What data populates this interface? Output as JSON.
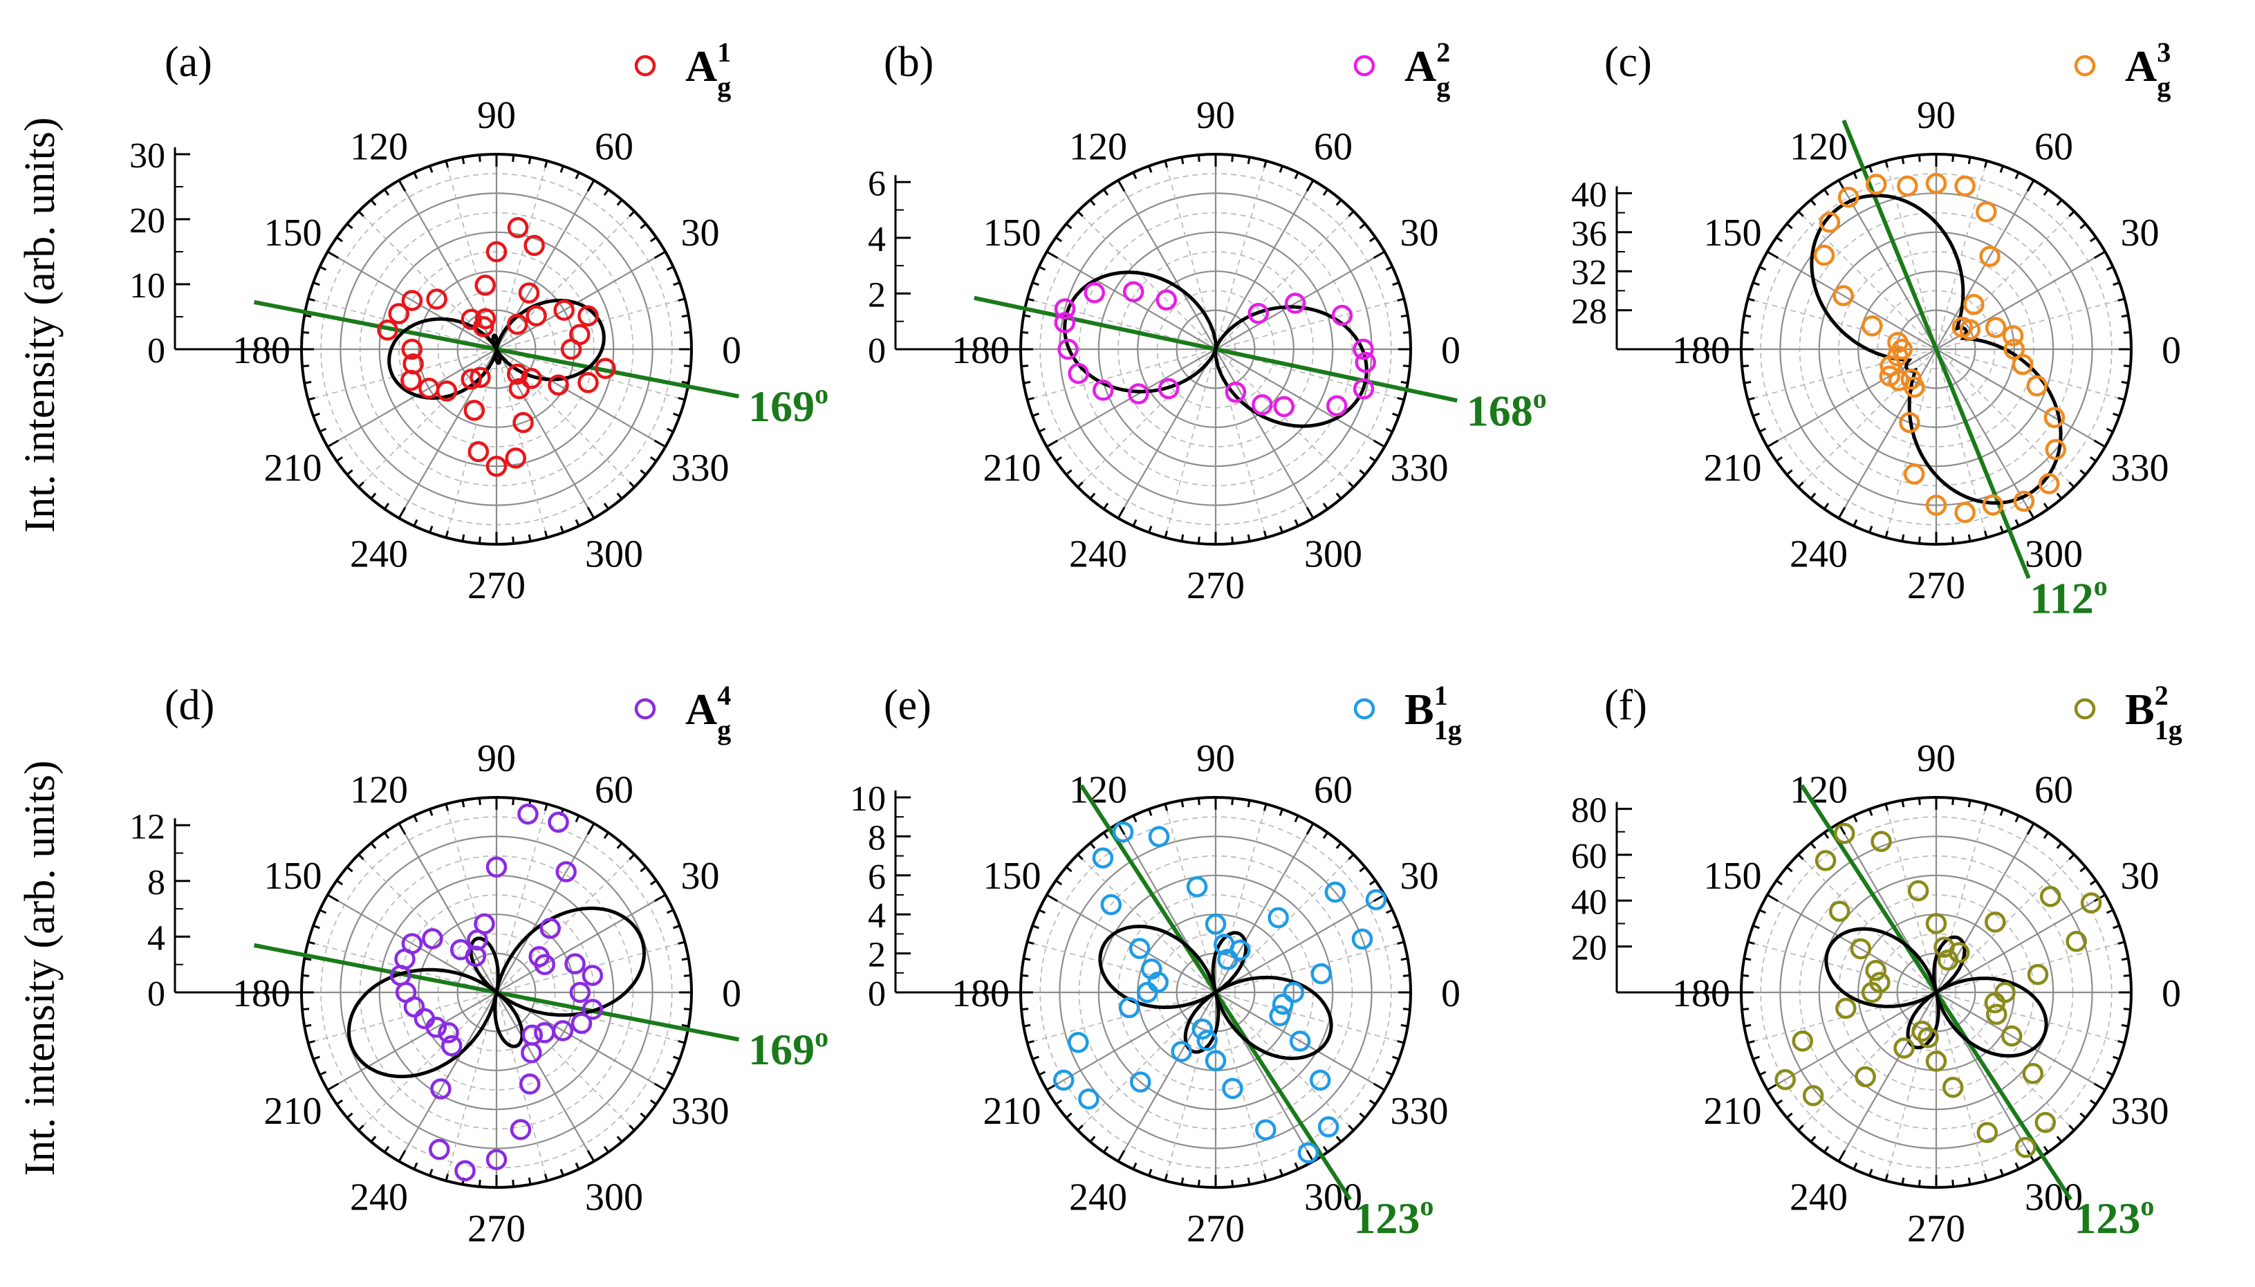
{
  "figure": {
    "ylabel_top": "Int. intensity (arb. units)",
    "ylabel_bottom": "Int. intensity (arb. units)"
  },
  "chart_data": [
    {
      "type": "polar-scatter-line",
      "panel_label": "(a)",
      "legend": {
        "symbol": "A",
        "sub": "g",
        "sup": "1"
      },
      "color": "#e8161b",
      "angle_ticks": [
        "0",
        "30",
        "60",
        "90",
        "120",
        "150",
        "180",
        "210",
        "240",
        "270",
        "300",
        "330"
      ],
      "r_axis": {
        "ticks": [
          0,
          10,
          20,
          30
        ],
        "rmin": 0,
        "rmax": 30
      },
      "axis_line": {
        "angle_deg": 169,
        "label": "169",
        "sup": "o",
        "color": "#1a7a1a"
      },
      "fit_params": {
        "a": 0,
        "b": 14.5,
        "c": 12.0,
        "theta0": 169
      },
      "points": [
        [
          0,
          11.5
        ],
        [
          10,
          13
        ],
        [
          20,
          15
        ],
        [
          30,
          12
        ],
        [
          40,
          8
        ],
        [
          50,
          5
        ],
        [
          60,
          10
        ],
        [
          70,
          17
        ],
        [
          80,
          19
        ],
        [
          90,
          15
        ],
        [
          100,
          10
        ],
        [
          110,
          5
        ],
        [
          120,
          4
        ],
        [
          130,
          6
        ],
        [
          140,
          12
        ],
        [
          150,
          15
        ],
        [
          160,
          16
        ],
        [
          170,
          17
        ],
        [
          180,
          13
        ],
        [
          190,
          13
        ],
        [
          200,
          14
        ],
        [
          210,
          12
        ],
        [
          220,
          10
        ],
        [
          230,
          6
        ],
        [
          240,
          5
        ],
        [
          250,
          10
        ],
        [
          260,
          16
        ],
        [
          270,
          18
        ],
        [
          280,
          17
        ],
        [
          290,
          12
        ],
        [
          300,
          7
        ],
        [
          310,
          5
        ],
        [
          320,
          7
        ],
        [
          330,
          11
        ],
        [
          340,
          15
        ],
        [
          350,
          17
        ]
      ]
    },
    {
      "type": "polar-scatter-line",
      "panel_label": "(b)",
      "legend": {
        "symbol": "A",
        "sub": "g",
        "sup": "2"
      },
      "color": "#e61ee6",
      "angle_ticks": [
        "0",
        "30",
        "60",
        "90",
        "120",
        "150",
        "180",
        "210",
        "240",
        "270",
        "300",
        "330"
      ],
      "r_axis": {
        "ticks": [
          0,
          2,
          4,
          6
        ],
        "rmin": 0,
        "rmax": 7
      },
      "axis_line": {
        "angle_deg": 168,
        "label": "168",
        "sup": "o",
        "color": "#1a7a1a"
      },
      "fit_params": {
        "a": 0,
        "b": 5.5,
        "c": 0,
        "theta0": 168
      },
      "points": [
        [
          0,
          5.3
        ],
        [
          15,
          4.7
        ],
        [
          30,
          3.3
        ],
        [
          40,
          2.0
        ],
        [
          155,
          4.8
        ],
        [
          165,
          5.6
        ],
        [
          170,
          5.5
        ],
        [
          180,
          5.3
        ],
        [
          190,
          5.0
        ],
        [
          200,
          4.3
        ],
        [
          210,
          3.2
        ],
        [
          220,
          2.2
        ],
        [
          335,
          4.8
        ],
        [
          345,
          5.5
        ],
        [
          355,
          5.4
        ],
        [
          320,
          3.2
        ],
        [
          310,
          2.6
        ],
        [
          295,
          1.7
        ],
        [
          145,
          3.6
        ],
        [
          135,
          2.5
        ]
      ]
    },
    {
      "type": "polar-scatter-line",
      "panel_label": "(c)",
      "legend": {
        "symbol": "A",
        "sub": "g",
        "sup": "3"
      },
      "color": "#f08a1e",
      "angle_ticks": [
        "0",
        "30",
        "60",
        "90",
        "120",
        "150",
        "180",
        "210",
        "240",
        "270",
        "300",
        "330"
      ],
      "r_axis": {
        "ticks": [
          28,
          32,
          36,
          40
        ],
        "rmin": 24,
        "rmax": 44
      },
      "axis_line": {
        "angle_deg": 112,
        "label": "112",
        "sup": "o",
        "color": "#1a7a1a"
      },
      "fit_params": {
        "a": 27,
        "b": 14.0,
        "c": 6.0,
        "theta0": 112
      },
      "points": [
        [
          0,
          32
        ],
        [
          10,
          32
        ],
        [
          20,
          30.5
        ],
        [
          30,
          28
        ],
        [
          40,
          27.5
        ],
        [
          50,
          30
        ],
        [
          60,
          35
        ],
        [
          70,
          39
        ],
        [
          80,
          41
        ],
        [
          90,
          41
        ],
        [
          100,
          41
        ],
        [
          110,
          42
        ],
        [
          120,
          42
        ],
        [
          130,
          41
        ],
        [
          140,
          39
        ],
        [
          150,
          35
        ],
        [
          160,
          31
        ],
        [
          170,
          28
        ],
        [
          180,
          27.5
        ],
        [
          190,
          28
        ],
        [
          200,
          29
        ],
        [
          210,
          29.5
        ],
        [
          220,
          29
        ],
        [
          230,
          28
        ],
        [
          240,
          28.5
        ],
        [
          250,
          32
        ],
        [
          260,
          37
        ],
        [
          270,
          40
        ],
        [
          280,
          41
        ],
        [
          290,
          41
        ],
        [
          300,
          42
        ],
        [
          310,
          42
        ],
        [
          320,
          40
        ],
        [
          330,
          38
        ],
        [
          340,
          35
        ],
        [
          350,
          33
        ]
      ]
    },
    {
      "type": "polar-scatter-line",
      "panel_label": "(d)",
      "legend": {
        "symbol": "A",
        "sub": "g",
        "sup": "4"
      },
      "color": "#8a2be2",
      "angle_ticks": [
        "0",
        "30",
        "60",
        "90",
        "120",
        "150",
        "180",
        "210",
        "240",
        "270",
        "300",
        "330"
      ],
      "r_axis": {
        "ticks": [
          0,
          4,
          8,
          12
        ],
        "rmin": 0,
        "rmax": 14
      },
      "axis_line": {
        "angle_deg": 169,
        "label": "169",
        "sup": "o",
        "color": "#1a7a1a"
      },
      "fit_params": {
        "a": 0,
        "b": 7.0,
        "c": 13.5,
        "theta0": 169
      },
      "points": [
        [
          0,
          6
        ],
        [
          10,
          7
        ],
        [
          20,
          6
        ],
        [
          30,
          4
        ],
        [
          40,
          4
        ],
        [
          50,
          6
        ],
        [
          60,
          10
        ],
        [
          70,
          13
        ],
        [
          80,
          13
        ],
        [
          90,
          9
        ],
        [
          100,
          5
        ],
        [
          110,
          4
        ],
        [
          120,
          3
        ],
        [
          130,
          4
        ],
        [
          140,
          6
        ],
        [
          150,
          7
        ],
        [
          160,
          7
        ],
        [
          170,
          7
        ],
        [
          180,
          6.5
        ],
        [
          190,
          6
        ],
        [
          200,
          5.5
        ],
        [
          210,
          5
        ],
        [
          220,
          4.5
        ],
        [
          230,
          5
        ],
        [
          240,
          8
        ],
        [
          250,
          12
        ],
        [
          260,
          13
        ],
        [
          270,
          12
        ],
        [
          280,
          10
        ],
        [
          290,
          7
        ],
        [
          300,
          5
        ],
        [
          310,
          4
        ],
        [
          320,
          4.5
        ],
        [
          330,
          5.5
        ],
        [
          340,
          6.5
        ],
        [
          350,
          7
        ]
      ]
    },
    {
      "type": "polar-scatter-line",
      "panel_label": "(e)",
      "legend": {
        "symbol": "B",
        "sub": "1g",
        "sup": "1"
      },
      "color": "#1e9be6",
      "angle_ticks": [
        "0",
        "30",
        "60",
        "90",
        "120",
        "150",
        "180",
        "210",
        "240",
        "270",
        "300",
        "330"
      ],
      "r_axis": {
        "ticks": [
          0,
          2,
          4,
          6,
          8,
          10
        ],
        "rmin": 0,
        "rmax": 10
      },
      "axis_line": {
        "angle_deg": 123,
        "label": "123",
        "sup": "o",
        "color": "#1a7a1a"
      },
      "fit_params": {
        "a": 0,
        "b": 3.0,
        "c": 9.0,
        "theta0": 123
      },
      "points": [
        [
          0,
          4
        ],
        [
          10,
          5.5
        ],
        [
          20,
          8
        ],
        [
          30,
          9.5
        ],
        [
          40,
          8
        ],
        [
          50,
          5
        ],
        [
          60,
          2.5
        ],
        [
          70,
          1.8
        ],
        [
          80,
          2.5
        ],
        [
          90,
          3.5
        ],
        [
          100,
          5.5
        ],
        [
          110,
          8.5
        ],
        [
          120,
          9.5
        ],
        [
          130,
          9
        ],
        [
          140,
          7
        ],
        [
          150,
          4.5
        ],
        [
          160,
          3.5
        ],
        [
          170,
          3
        ],
        [
          180,
          3.5
        ],
        [
          190,
          4.5
        ],
        [
          200,
          7.5
        ],
        [
          210,
          9
        ],
        [
          220,
          8.5
        ],
        [
          230,
          6
        ],
        [
          240,
          3.5
        ],
        [
          250,
          2
        ],
        [
          260,
          2.5
        ],
        [
          270,
          3.5
        ],
        [
          280,
          5
        ],
        [
          290,
          7.5
        ],
        [
          300,
          9.5
        ],
        [
          310,
          9
        ],
        [
          320,
          7
        ],
        [
          330,
          5
        ],
        [
          340,
          3.5
        ],
        [
          350,
          3.5
        ]
      ]
    },
    {
      "type": "polar-scatter-line",
      "panel_label": "(f)",
      "legend": {
        "symbol": "B",
        "sub": "1g",
        "sup": "2"
      },
      "color": "#8a8a1a",
      "angle_ticks": [
        "0",
        "30",
        "60",
        "90",
        "120",
        "150",
        "180",
        "210",
        "240",
        "270",
        "300",
        "330"
      ],
      "r_axis": {
        "ticks": [
          20,
          40,
          60,
          80
        ],
        "rmin": 0,
        "rmax": 85
      },
      "axis_line": {
        "angle_deg": 123,
        "label": "123",
        "sup": "o",
        "color": "#1a7a1a"
      },
      "fit_params": {
        "a": 0,
        "b": 25.0,
        "c": 72.0,
        "theta0": 123
      },
      "points": [
        [
          0,
          30
        ],
        [
          10,
          45
        ],
        [
          20,
          65
        ],
        [
          30,
          78
        ],
        [
          40,
          65
        ],
        [
          50,
          40
        ],
        [
          60,
          20
        ],
        [
          70,
          15
        ],
        [
          80,
          20
        ],
        [
          90,
          30
        ],
        [
          100,
          45
        ],
        [
          110,
          70
        ],
        [
          120,
          80
        ],
        [
          130,
          75
        ],
        [
          140,
          55
        ],
        [
          150,
          38
        ],
        [
          160,
          28
        ],
        [
          170,
          25
        ],
        [
          180,
          28
        ],
        [
          190,
          40
        ],
        [
          200,
          62
        ],
        [
          210,
          76
        ],
        [
          220,
          70
        ],
        [
          230,
          48
        ],
        [
          240,
          28
        ],
        [
          250,
          18
        ],
        [
          260,
          20
        ],
        [
          270,
          30
        ],
        [
          280,
          42
        ],
        [
          290,
          65
        ],
        [
          300,
          78
        ],
        [
          310,
          74
        ],
        [
          320,
          55
        ],
        [
          330,
          38
        ],
        [
          340,
          28
        ],
        [
          350,
          26
        ]
      ]
    }
  ]
}
